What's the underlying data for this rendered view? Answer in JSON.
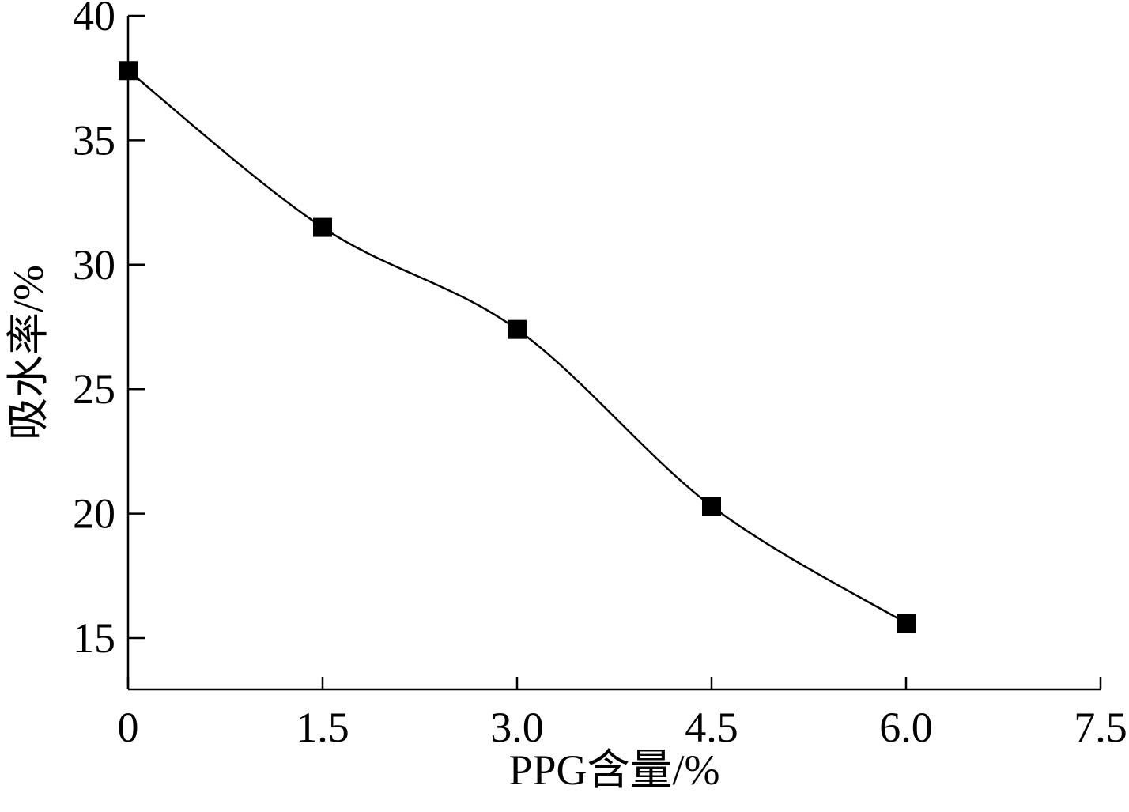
{
  "chart_data": {
    "type": "line",
    "title": "",
    "xlabel": "PPG含量/%",
    "ylabel": "吸水率/%",
    "xlim": [
      0,
      7.5
    ],
    "ylim": [
      13,
      40
    ],
    "x_ticks": [
      0,
      1.5,
      3.0,
      4.5,
      6.0,
      7.5
    ],
    "x_tick_labels": [
      "0",
      "1.5",
      "3.0",
      "4.5",
      "6.0",
      "7.5"
    ],
    "y_ticks": [
      15,
      20,
      25,
      30,
      35,
      40
    ],
    "y_tick_labels": [
      "15",
      "20",
      "25",
      "30",
      "35",
      "40"
    ],
    "grid": false,
    "legend": "none",
    "series": [
      {
        "name": "",
        "marker": "square",
        "color": "#000000",
        "line": "smooth",
        "x": [
          0,
          1.5,
          3.0,
          4.5,
          6.0
        ],
        "y": [
          37.8,
          31.5,
          27.4,
          20.3,
          15.6
        ]
      }
    ]
  }
}
